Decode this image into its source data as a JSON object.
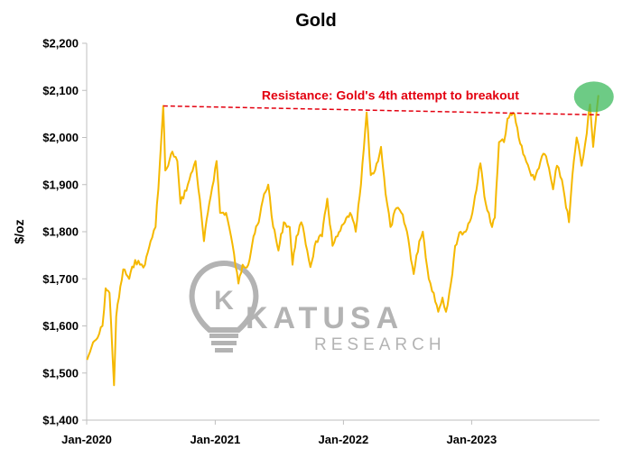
{
  "chart_data": {
    "type": "line",
    "title": "Gold",
    "xlabel": "",
    "ylabel": "$/oz",
    "ylim": [
      1400,
      2200
    ],
    "y_ticks": [
      "$1,400",
      "$1,500",
      "$1,600",
      "$1,700",
      "$1,800",
      "$1,900",
      "$2,000",
      "$2,100",
      "$2,200"
    ],
    "x_ticks": [
      "Jan-2020",
      "Jan-2021",
      "Jan-2022",
      "Jan-2023"
    ],
    "x_range": [
      "2020-01-01",
      "2023-12-31"
    ],
    "grid": false,
    "series": [
      {
        "color": "#f5b800",
        "x": [
          "2020-01-02",
          "2020-01-15",
          "2020-02-01",
          "2020-02-15",
          "2020-02-24",
          "2020-03-06",
          "2020-03-19",
          "2020-03-25",
          "2020-04-14",
          "2020-05-01",
          "2020-05-18",
          "2020-06-01",
          "2020-06-15",
          "2020-07-01",
          "2020-07-15",
          "2020-07-27",
          "2020-08-06",
          "2020-08-12",
          "2020-08-20",
          "2020-09-01",
          "2020-09-15",
          "2020-09-24",
          "2020-10-15",
          "2020-11-06",
          "2020-11-30",
          "2020-12-15",
          "2021-01-05",
          "2021-01-15",
          "2021-02-01",
          "2021-02-15",
          "2021-03-08",
          "2021-03-20",
          "2021-04-05",
          "2021-04-20",
          "2021-05-05",
          "2021-05-20",
          "2021-06-01",
          "2021-06-15",
          "2021-06-30",
          "2021-07-15",
          "2021-08-01",
          "2021-08-09",
          "2021-08-20",
          "2021-09-03",
          "2021-09-20",
          "2021-09-29",
          "2021-10-15",
          "2021-11-01",
          "2021-11-16",
          "2021-12-01",
          "2021-12-15",
          "2022-01-05",
          "2022-01-20",
          "2022-02-05",
          "2022-02-20",
          "2022-03-08",
          "2022-03-20",
          "2022-04-01",
          "2022-04-18",
          "2022-05-01",
          "2022-05-15",
          "2022-06-01",
          "2022-06-15",
          "2022-07-01",
          "2022-07-20",
          "2022-08-05",
          "2022-08-15",
          "2022-09-01",
          "2022-09-15",
          "2022-09-28",
          "2022-10-10",
          "2022-10-20",
          "2022-11-03",
          "2022-11-15",
          "2022-12-01",
          "2022-12-15",
          "2023-01-03",
          "2023-01-26",
          "2023-02-10",
          "2023-02-28",
          "2023-03-08",
          "2023-03-20",
          "2023-04-03",
          "2023-04-13",
          "2023-05-03",
          "2023-05-15",
          "2023-06-01",
          "2023-06-15",
          "2023-06-29",
          "2023-07-20",
          "2023-08-01",
          "2023-08-21",
          "2023-09-01",
          "2023-09-15",
          "2023-10-05",
          "2023-10-15",
          "2023-10-27",
          "2023-11-10",
          "2023-11-20",
          "2023-12-04",
          "2023-12-13",
          "2023-12-28"
        ],
        "values": [
          1528,
          1555,
          1575,
          1600,
          1680,
          1670,
          1474,
          1620,
          1720,
          1700,
          1740,
          1730,
          1730,
          1780,
          1810,
          1940,
          2067,
          1930,
          1940,
          1970,
          1950,
          1860,
          1900,
          1950,
          1780,
          1860,
          1950,
          1840,
          1840,
          1790,
          1690,
          1730,
          1730,
          1790,
          1820,
          1880,
          1900,
          1810,
          1760,
          1820,
          1810,
          1730,
          1790,
          1820,
          1760,
          1725,
          1780,
          1790,
          1870,
          1770,
          1790,
          1820,
          1840,
          1800,
          1900,
          2053,
          1920,
          1930,
          1980,
          1880,
          1810,
          1850,
          1840,
          1800,
          1710,
          1780,
          1800,
          1700,
          1670,
          1630,
          1660,
          1630,
          1690,
          1770,
          1800,
          1800,
          1840,
          1945,
          1860,
          1810,
          1830,
          1990,
          1990,
          2040,
          2050,
          2000,
          1960,
          1930,
          1910,
          1960,
          1960,
          1890,
          1940,
          1910,
          1820,
          1920,
          2000,
          1940,
          1985,
          2070,
          1980,
          2090
        ]
      }
    ],
    "annotations": [
      {
        "text": "Resistance: Gold's 4th attempt to breakout",
        "from": [
          "2020-08-06",
          2067
        ],
        "to": [
          "2023-12-31",
          2048
        ],
        "color": "#e3000f",
        "style": "dashed"
      },
      {
        "type": "highlight-circle",
        "at": [
          "2023-12-15",
          2075
        ],
        "color": "#3cb95c"
      }
    ]
  },
  "watermark": {
    "name": "KATUSA",
    "sub": "RESEARCH",
    "logo_letter": "K"
  }
}
